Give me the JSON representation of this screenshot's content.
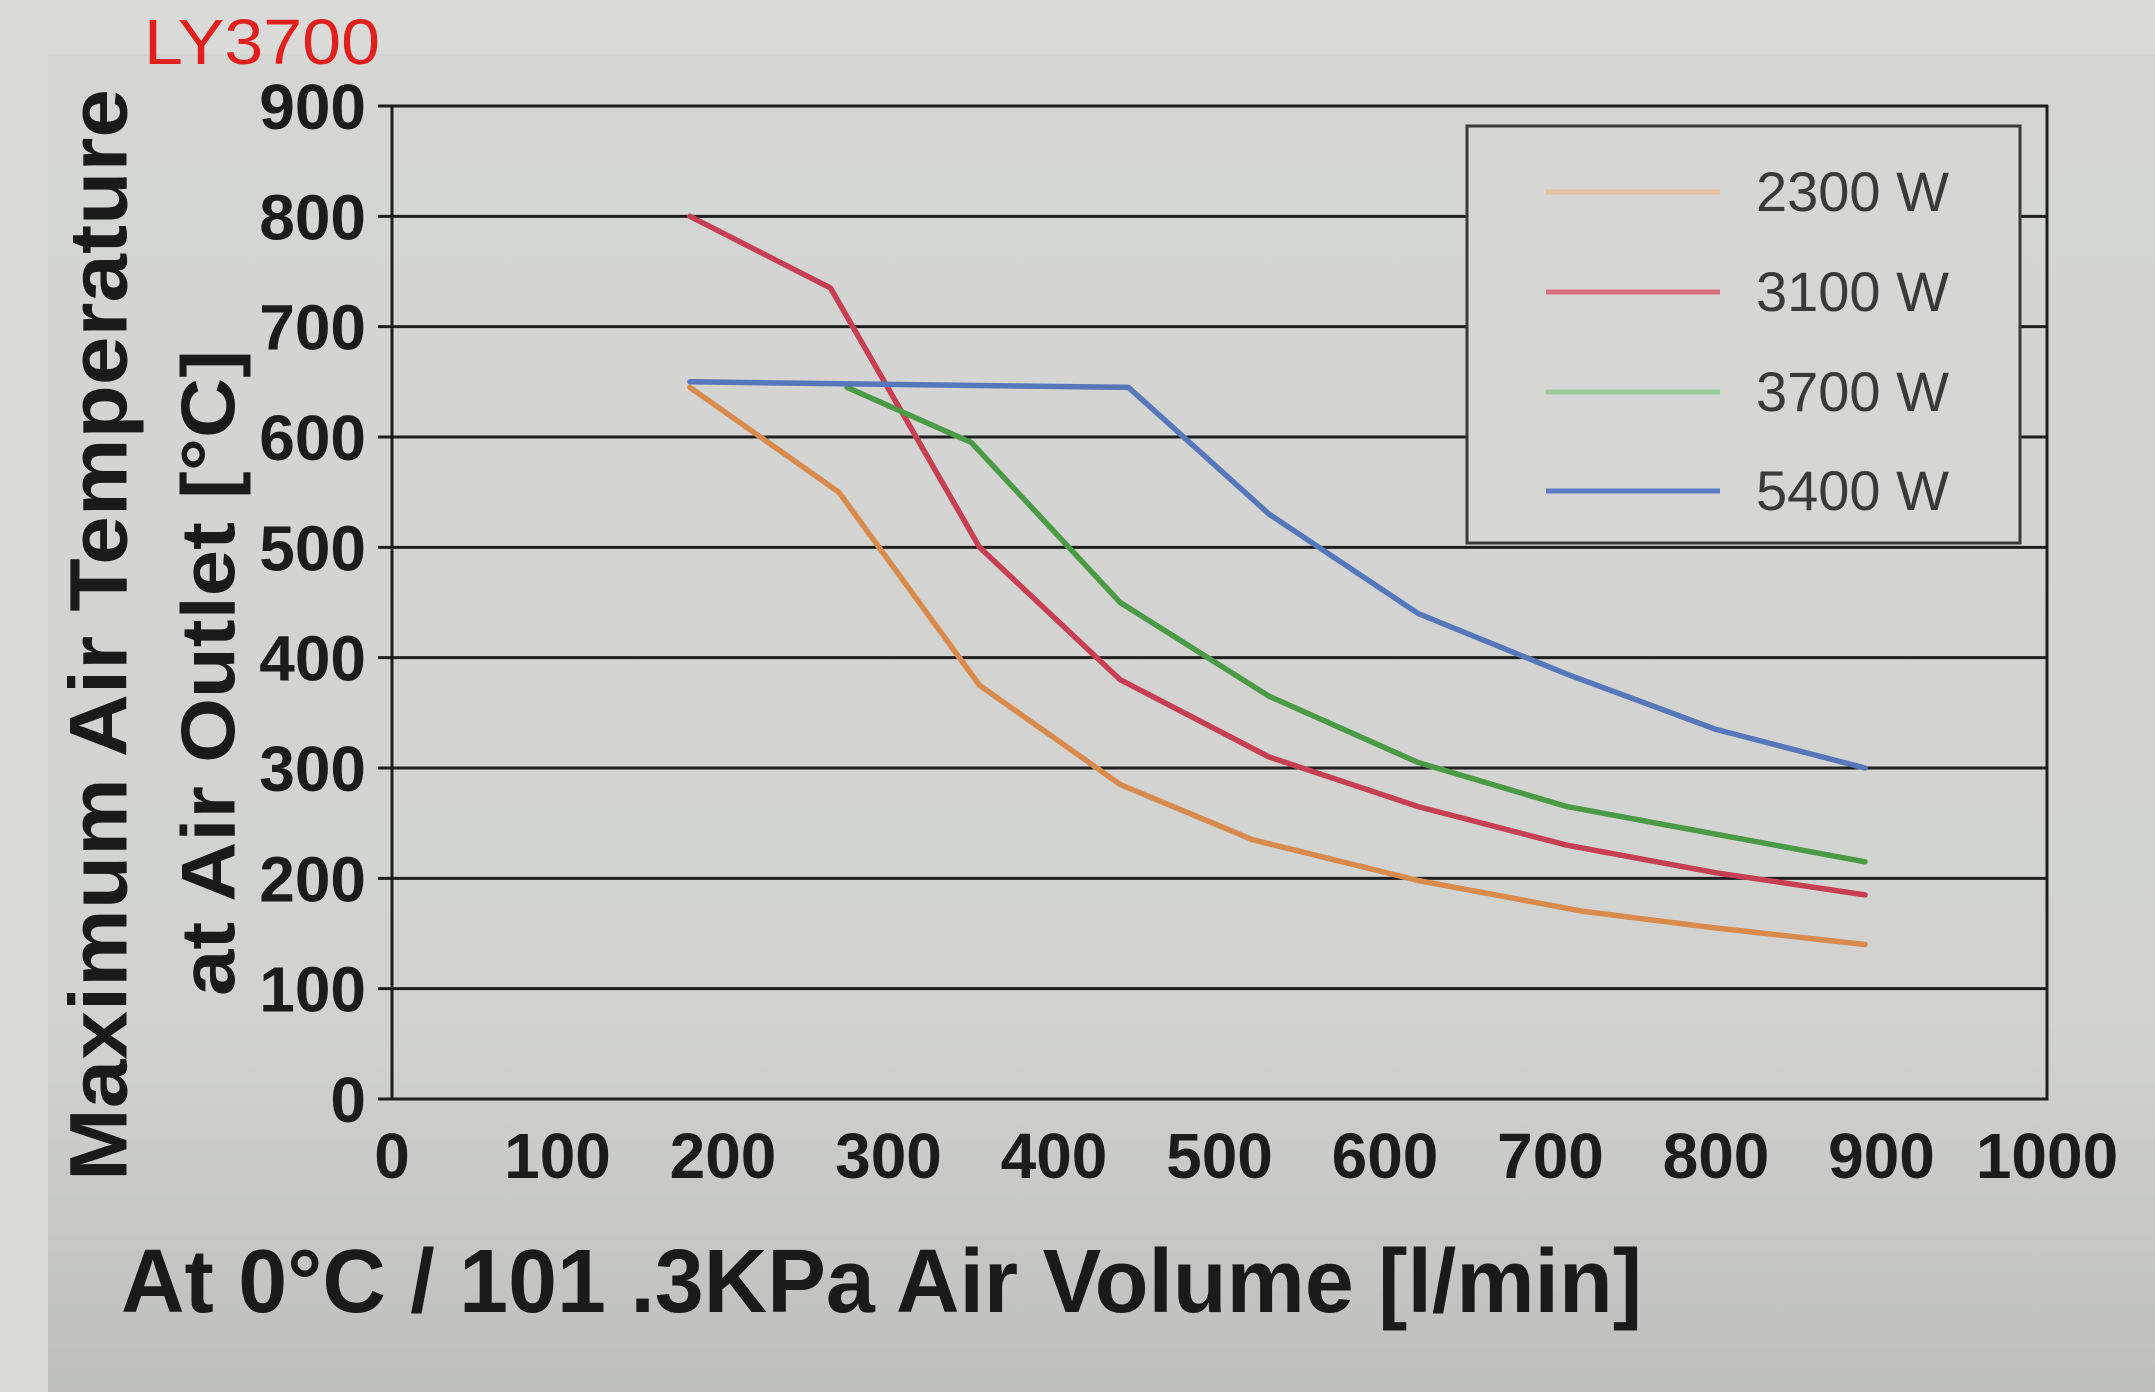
{
  "tag": {
    "text": "LY3700",
    "color": "#e0201c"
  },
  "chart_data": {
    "type": "line",
    "title": "",
    "xlabel": "At 0°C / 101 .3KPa Air Volume [l/min]",
    "ylabel_lines": [
      "Maximum Air Temperature",
      "at Air Outlet [°C]"
    ],
    "xlim": [
      0,
      1000
    ],
    "ylim": [
      0,
      900
    ],
    "xticks": [
      0,
      100,
      200,
      300,
      400,
      500,
      600,
      700,
      800,
      900,
      1000
    ],
    "yticks": [
      0,
      100,
      200,
      300,
      400,
      500,
      600,
      700,
      800,
      900
    ],
    "grid": "horizontal",
    "legend_position": "top-right",
    "series": [
      {
        "name": "2300 W",
        "color": "#d98b4e",
        "legend_color": "#e2c2a0",
        "points": [
          [
            180,
            645
          ],
          [
            270,
            550
          ],
          [
            355,
            375
          ],
          [
            440,
            285
          ],
          [
            520,
            235
          ],
          [
            620,
            198
          ],
          [
            720,
            170
          ],
          [
            800,
            155
          ],
          [
            890,
            140
          ]
        ]
      },
      {
        "name": "3100 W",
        "color": "#c63f52",
        "legend_color": "#d9707f",
        "points": [
          [
            180,
            800
          ],
          [
            265,
            735
          ],
          [
            355,
            500
          ],
          [
            440,
            380
          ],
          [
            530,
            310
          ],
          [
            620,
            265
          ],
          [
            710,
            230
          ],
          [
            800,
            205
          ],
          [
            890,
            185
          ]
        ]
      },
      {
        "name": "3700 W",
        "color": "#4b9a46",
        "legend_color": "#9cc89a",
        "points": [
          [
            275,
            645
          ],
          [
            350,
            595
          ],
          [
            440,
            450
          ],
          [
            530,
            365
          ],
          [
            620,
            305
          ],
          [
            710,
            265
          ],
          [
            800,
            240
          ],
          [
            890,
            215
          ]
        ]
      },
      {
        "name": "5400 W",
        "color": "#5678ba",
        "legend_color": "#5a7fc4",
        "points": [
          [
            180,
            650
          ],
          [
            445,
            645
          ],
          [
            530,
            530
          ],
          [
            620,
            440
          ],
          [
            710,
            385
          ],
          [
            800,
            335
          ],
          [
            890,
            300
          ]
        ]
      }
    ]
  }
}
